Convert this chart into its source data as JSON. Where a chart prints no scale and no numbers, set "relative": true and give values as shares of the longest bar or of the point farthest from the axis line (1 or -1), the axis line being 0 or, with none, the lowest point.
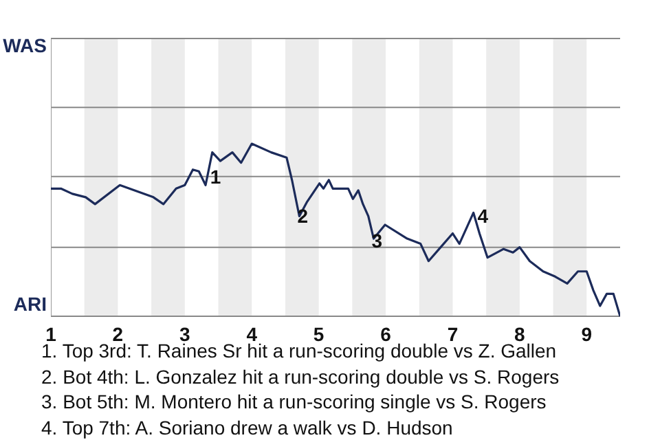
{
  "chart_data": {
    "type": "line",
    "relative": true,
    "x": [
      1,
      1.15,
      1.32,
      1.52,
      1.66,
      2.03,
      2.53,
      2.68,
      2.87,
      3,
      3.12,
      3.21,
      3.31,
      3.41,
      3.53,
      3.71,
      3.84,
      4,
      4.29,
      4.52,
      4.6,
      4.71,
      4.82,
      5.01,
      5.07,
      5.15,
      5.21,
      5.35,
      5.44,
      5.51,
      5.59,
      5.66,
      5.74,
      5.82,
      5.99,
      6.32,
      6.52,
      6.64,
      6.82,
      7,
      7.1,
      7.31,
      7.4,
      7.52,
      7.76,
      7.9,
      8,
      8.15,
      8.35,
      8.53,
      8.71,
      8.87,
      9,
      9.1,
      9.2,
      9.3,
      9.4,
      9.5
    ],
    "series": [
      {
        "color": "#1c2b5a",
        "values": [
          0.74,
          0.74,
          0.71,
          0.69,
          0.65,
          0.76,
          0.69,
          0.65,
          0.74,
          0.76,
          0.85,
          0.84,
          0.76,
          0.95,
          0.9,
          0.95,
          0.89,
          1,
          0.95,
          0.92,
          0.79,
          0.58,
          0.66,
          0.77,
          0.74,
          0.79,
          0.74,
          0.74,
          0.74,
          0.68,
          0.73,
          0.65,
          0.58,
          0.45,
          0.53,
          0.45,
          0.42,
          0.32,
          0.4,
          0.48,
          0.42,
          0.6,
          0.48,
          0.34,
          0.39,
          0.37,
          0.4,
          0.32,
          0.26,
          0.23,
          0.19,
          0.26,
          0.26,
          0.15,
          0.06,
          0.13,
          0.13,
          0
        ]
      }
    ],
    "xlim": [
      1,
      9.5
    ],
    "xticks": [
      1,
      2,
      3,
      4,
      5,
      6,
      7,
      8,
      9
    ],
    "marker": "none",
    "line_style": "solid",
    "ref_lines": [
      {
        "axis": "y",
        "value": 0,
        "label": "ARI",
        "color": "#888888"
      },
      {
        "axis": "y",
        "value": 0.4,
        "color": "#888888"
      },
      {
        "axis": "y",
        "value": 0.81,
        "color": "#888888"
      },
      {
        "axis": "y",
        "value": 1.21,
        "color": "#888888"
      },
      {
        "axis": "y",
        "value": 1.61,
        "label": "WAS",
        "color": "#888888"
      }
    ],
    "bands": [
      {
        "axis": "x",
        "from": 1.5,
        "to": 2,
        "color": "#ececec"
      },
      {
        "axis": "x",
        "from": 2.5,
        "to": 3,
        "color": "#ececec"
      },
      {
        "axis": "x",
        "from": 3.5,
        "to": 4,
        "color": "#ececec"
      },
      {
        "axis": "x",
        "from": 4.5,
        "to": 5,
        "color": "#ececec"
      },
      {
        "axis": "x",
        "from": 5.5,
        "to": 6,
        "color": "#ececec"
      },
      {
        "axis": "x",
        "from": 6.5,
        "to": 7,
        "color": "#ececec"
      },
      {
        "axis": "x",
        "from": 7.5,
        "to": 8,
        "color": "#ececec"
      },
      {
        "axis": "x",
        "from": 8.5,
        "to": 9,
        "color": "#ececec"
      }
    ],
    "annotations": [
      {
        "text": "1",
        "x": 3.46,
        "y": 0.81
      },
      {
        "text": "2",
        "x": 4.76,
        "y": 0.58
      },
      {
        "text": "3",
        "x": 5.87,
        "y": 0.44
      },
      {
        "text": "4",
        "x": 7.45,
        "y": 0.58
      },
      "1. Top 3rd: T. Raines Sr hit a run-scoring double vs Z. Gallen",
      "2. Bot 4th: L. Gonzalez hit a run-scoring double vs S. Rogers",
      "3. Bot 5th: M. Montero hit a run-scoring single vs S. Rogers",
      "4. Top 7th: A. Soriano drew a walk vs D. Hudson"
    ]
  }
}
